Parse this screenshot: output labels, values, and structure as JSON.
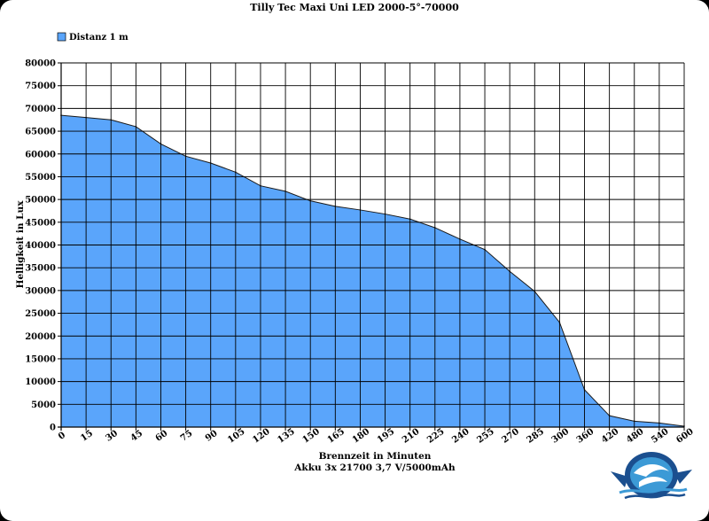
{
  "chart_data": {
    "type": "area",
    "title": "Tilly Tec Maxi Uni LED 2000-5°-70000",
    "xlabel": "Brennzeit in Minuten",
    "subtitle": "Akku 3x 21700 3,7 V/5000mAh",
    "ylabel": "Helligkeit in Lux",
    "legend": {
      "position": "top-left"
    },
    "grid": true,
    "ylim": [
      0,
      80000
    ],
    "y_ticks": [
      "80000",
      "75000",
      "70000",
      "65000",
      "60000",
      "55000",
      "50000",
      "45000",
      "40000",
      "35000",
      "30000",
      "25000",
      "20000",
      "15000",
      "10000",
      "5000",
      "0"
    ],
    "categories": [
      "0",
      "15",
      "30",
      "45",
      "60",
      "75",
      "90",
      "105",
      "120",
      "135",
      "150",
      "165",
      "180",
      "195",
      "210",
      "225",
      "240",
      "255",
      "270",
      "285",
      "300",
      "360",
      "420",
      "480",
      "540",
      "600"
    ],
    "series": [
      {
        "name": "Distanz 1 m",
        "color": "#5aa5fb",
        "values": [
          68500,
          68000,
          67500,
          66000,
          62200,
          59500,
          58000,
          56000,
          53000,
          51800,
          49700,
          48500,
          47700,
          46800,
          45700,
          43800,
          41300,
          39000,
          34200,
          29800,
          23000,
          8200,
          2500,
          1300,
          900,
          200
        ]
      }
    ]
  },
  "logo": {
    "name": "diving-logo-icon",
    "colors": [
      "#1b4f8f",
      "#3c9ad6"
    ]
  }
}
